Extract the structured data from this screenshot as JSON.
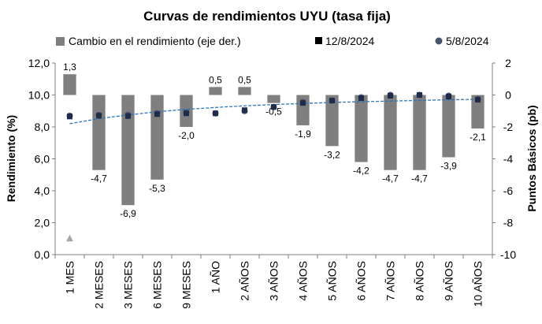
{
  "chart_data": {
    "type": "bar",
    "title": "Curvas de rendimientos UYU (tasa fija)",
    "categories": [
      "1 MES",
      "2 MESES",
      "3 MESES",
      "6 MESES",
      "9 MESES",
      "1 AÑO",
      "2 AÑOS",
      "3 AÑOS",
      "4 AÑOS",
      "5 AÑOS",
      "6 AÑOS",
      "7 AÑOS",
      "8 AÑOS",
      "9 AÑOS",
      "10 AÑOS"
    ],
    "ylabel": "Rendimiento (%)",
    "y2label": "Puntos Básicos (pb)",
    "ylim": [
      0,
      12
    ],
    "y2lim": [
      -10,
      2
    ],
    "yticks": [
      "0,0",
      "2,0",
      "4,0",
      "6,0",
      "8,0",
      "10,0",
      "12,0"
    ],
    "y2ticks": [
      "-10",
      "-8",
      "-6",
      "-4",
      "-2",
      "0",
      "2"
    ],
    "legend_position": "top",
    "series": [
      {
        "name": "Cambio en el rendimiento (eje der.)",
        "type": "bar",
        "axis": "right",
        "color": "#7f7f7f",
        "values": [
          1.3,
          -4.7,
          -6.9,
          -5.3,
          -2.0,
          0.5,
          0.5,
          -0.5,
          -1.9,
          -3.2,
          -4.2,
          -4.7,
          -4.7,
          -3.9,
          -2.1
        ],
        "labels": [
          "1,3",
          "-4,7",
          "-6,9",
          "-5,3",
          "-2,0",
          "0,5",
          "0,5",
          "-0,5",
          "-1,9",
          "-3,2",
          "-4,2",
          "-4,7",
          "-4,7",
          "-3,9",
          "-2,1"
        ]
      },
      {
        "name": "12/8/2024",
        "type": "scatter",
        "axis": "left",
        "marker": "square",
        "color": "#1f2d4a",
        "values": [
          8.65,
          8.7,
          8.68,
          8.8,
          8.85,
          8.85,
          9.05,
          9.25,
          9.5,
          9.65,
          9.8,
          9.95,
          10.0,
          9.9,
          9.7
        ]
      },
      {
        "name": "5/8/2024",
        "type": "scatter",
        "axis": "left",
        "marker": "circle",
        "color": "#44546a",
        "values": [
          8.7,
          8.75,
          8.75,
          8.85,
          8.9,
          8.85,
          9.0,
          9.25,
          9.55,
          9.65,
          9.85,
          10.0,
          10.0,
          9.95,
          9.75
        ]
      }
    ],
    "trendline": {
      "color": "#2e75b6",
      "values": [
        8.2,
        8.52,
        8.75,
        8.95,
        9.1,
        9.22,
        9.32,
        9.4,
        9.47,
        9.53,
        9.58,
        9.62,
        9.66,
        9.7,
        9.73
      ]
    },
    "marker_outlier": {
      "color": "#a6a6a6",
      "category": "1 MES",
      "value": 1.0
    }
  }
}
